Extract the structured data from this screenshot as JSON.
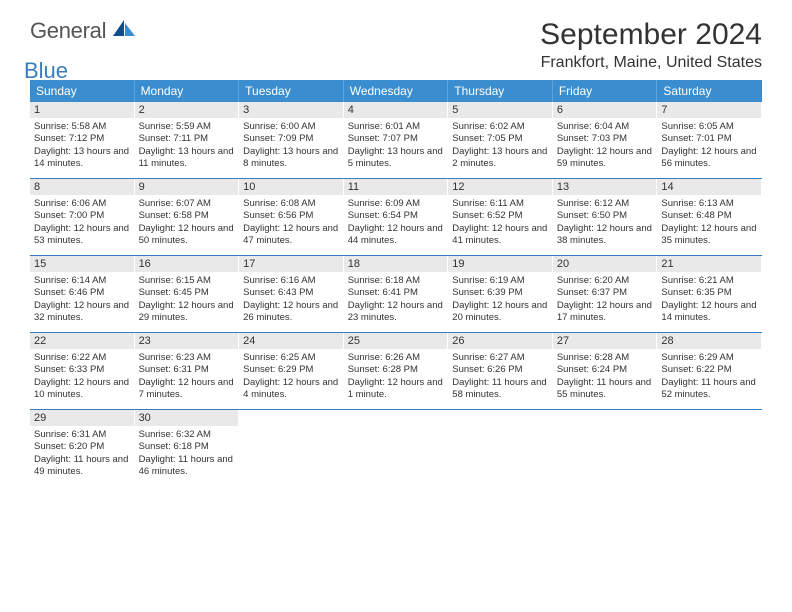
{
  "brand": {
    "part1": "General",
    "part2": "Blue"
  },
  "title": "September 2024",
  "location": "Frankfort, Maine, United States",
  "colors": {
    "header_bg": "#3a8dce",
    "accent": "#3a7dbf",
    "daynum_bg": "#e9e9e9",
    "text": "#333333"
  },
  "weekdays": [
    "Sunday",
    "Monday",
    "Tuesday",
    "Wednesday",
    "Thursday",
    "Friday",
    "Saturday"
  ],
  "layout": {
    "first_weekday_index": 0,
    "days_in_month": 30
  },
  "days": [
    {
      "n": 1,
      "sunrise": "5:58 AM",
      "sunset": "7:12 PM",
      "daylight": "13 hours and 14 minutes."
    },
    {
      "n": 2,
      "sunrise": "5:59 AM",
      "sunset": "7:11 PM",
      "daylight": "13 hours and 11 minutes."
    },
    {
      "n": 3,
      "sunrise": "6:00 AM",
      "sunset": "7:09 PM",
      "daylight": "13 hours and 8 minutes."
    },
    {
      "n": 4,
      "sunrise": "6:01 AM",
      "sunset": "7:07 PM",
      "daylight": "13 hours and 5 minutes."
    },
    {
      "n": 5,
      "sunrise": "6:02 AM",
      "sunset": "7:05 PM",
      "daylight": "13 hours and 2 minutes."
    },
    {
      "n": 6,
      "sunrise": "6:04 AM",
      "sunset": "7:03 PM",
      "daylight": "12 hours and 59 minutes."
    },
    {
      "n": 7,
      "sunrise": "6:05 AM",
      "sunset": "7:01 PM",
      "daylight": "12 hours and 56 minutes."
    },
    {
      "n": 8,
      "sunrise": "6:06 AM",
      "sunset": "7:00 PM",
      "daylight": "12 hours and 53 minutes."
    },
    {
      "n": 9,
      "sunrise": "6:07 AM",
      "sunset": "6:58 PM",
      "daylight": "12 hours and 50 minutes."
    },
    {
      "n": 10,
      "sunrise": "6:08 AM",
      "sunset": "6:56 PM",
      "daylight": "12 hours and 47 minutes."
    },
    {
      "n": 11,
      "sunrise": "6:09 AM",
      "sunset": "6:54 PM",
      "daylight": "12 hours and 44 minutes."
    },
    {
      "n": 12,
      "sunrise": "6:11 AM",
      "sunset": "6:52 PM",
      "daylight": "12 hours and 41 minutes."
    },
    {
      "n": 13,
      "sunrise": "6:12 AM",
      "sunset": "6:50 PM",
      "daylight": "12 hours and 38 minutes."
    },
    {
      "n": 14,
      "sunrise": "6:13 AM",
      "sunset": "6:48 PM",
      "daylight": "12 hours and 35 minutes."
    },
    {
      "n": 15,
      "sunrise": "6:14 AM",
      "sunset": "6:46 PM",
      "daylight": "12 hours and 32 minutes."
    },
    {
      "n": 16,
      "sunrise": "6:15 AM",
      "sunset": "6:45 PM",
      "daylight": "12 hours and 29 minutes."
    },
    {
      "n": 17,
      "sunrise": "6:16 AM",
      "sunset": "6:43 PM",
      "daylight": "12 hours and 26 minutes."
    },
    {
      "n": 18,
      "sunrise": "6:18 AM",
      "sunset": "6:41 PM",
      "daylight": "12 hours and 23 minutes."
    },
    {
      "n": 19,
      "sunrise": "6:19 AM",
      "sunset": "6:39 PM",
      "daylight": "12 hours and 20 minutes."
    },
    {
      "n": 20,
      "sunrise": "6:20 AM",
      "sunset": "6:37 PM",
      "daylight": "12 hours and 17 minutes."
    },
    {
      "n": 21,
      "sunrise": "6:21 AM",
      "sunset": "6:35 PM",
      "daylight": "12 hours and 14 minutes."
    },
    {
      "n": 22,
      "sunrise": "6:22 AM",
      "sunset": "6:33 PM",
      "daylight": "12 hours and 10 minutes."
    },
    {
      "n": 23,
      "sunrise": "6:23 AM",
      "sunset": "6:31 PM",
      "daylight": "12 hours and 7 minutes."
    },
    {
      "n": 24,
      "sunrise": "6:25 AM",
      "sunset": "6:29 PM",
      "daylight": "12 hours and 4 minutes."
    },
    {
      "n": 25,
      "sunrise": "6:26 AM",
      "sunset": "6:28 PM",
      "daylight": "12 hours and 1 minute."
    },
    {
      "n": 26,
      "sunrise": "6:27 AM",
      "sunset": "6:26 PM",
      "daylight": "11 hours and 58 minutes."
    },
    {
      "n": 27,
      "sunrise": "6:28 AM",
      "sunset": "6:24 PM",
      "daylight": "11 hours and 55 minutes."
    },
    {
      "n": 28,
      "sunrise": "6:29 AM",
      "sunset": "6:22 PM",
      "daylight": "11 hours and 52 minutes."
    },
    {
      "n": 29,
      "sunrise": "6:31 AM",
      "sunset": "6:20 PM",
      "daylight": "11 hours and 49 minutes."
    },
    {
      "n": 30,
      "sunrise": "6:32 AM",
      "sunset": "6:18 PM",
      "daylight": "11 hours and 46 minutes."
    }
  ],
  "labels": {
    "sunrise": "Sunrise:",
    "sunset": "Sunset:",
    "daylight": "Daylight:"
  }
}
